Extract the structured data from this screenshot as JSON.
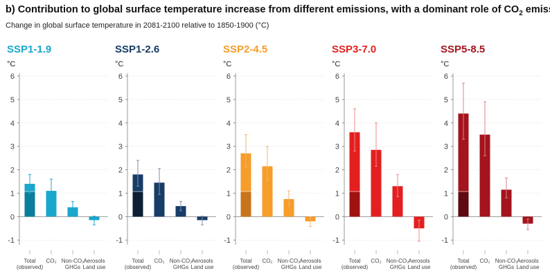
{
  "title_prefix": "b) Contribution to global surface temperature increase from different emissions, with a dominant role of CO",
  "title_sub": "2",
  "title_suffix": " emissions",
  "subtitle": "Change in global surface temperature in 2081-2100 relative to 1850-1900 (°C)",
  "chart_data": {
    "type": "bar",
    "unit_label": "°C",
    "ylim": [
      -1.2,
      6
    ],
    "yticks": [
      -1,
      0,
      1,
      2,
      3,
      4,
      5,
      6
    ],
    "categories": [
      [
        "Total",
        "(observed)"
      ],
      [
        "CO₂",
        ""
      ],
      [
        "Non-CO₂",
        "GHGs"
      ],
      [
        "Aerosols",
        "Land use"
      ]
    ],
    "observed_total": 1.07,
    "panels": [
      {
        "name": "SSP1-1.9",
        "color": "#1aa7cc",
        "dark": "#0b7e9c",
        "error": "#1aa7cc",
        "values": [
          1.4,
          1.1,
          0.4,
          -0.15
        ],
        "ranges": [
          [
            1.0,
            1.8
          ],
          [
            0.65,
            1.6
          ],
          [
            0.2,
            0.65
          ],
          [
            -0.35,
            0.02
          ]
        ]
      },
      {
        "name": "SSP1-2.6",
        "color": "#173c66",
        "dark": "#0c1f33",
        "error": "#7d8fa8",
        "values": [
          1.8,
          1.45,
          0.45,
          -0.15
        ],
        "ranges": [
          [
            1.3,
            2.4
          ],
          [
            0.95,
            2.05
          ],
          [
            0.25,
            0.65
          ],
          [
            -0.35,
            0.02
          ]
        ]
      },
      {
        "name": "SSP2-4.5",
        "color": "#f69d2a",
        "dark": "#c8741a",
        "error": "#f4b56b",
        "values": [
          2.7,
          2.15,
          0.75,
          -0.2
        ],
        "ranges": [
          [
            2.1,
            3.5
          ],
          [
            1.55,
            3.0
          ],
          [
            0.45,
            1.1
          ],
          [
            -0.42,
            0.0
          ]
        ]
      },
      {
        "name": "SSP3-7.0",
        "color": "#e41f1f",
        "dark": "#a01212",
        "error": "#f08a8a",
        "values": [
          3.6,
          2.85,
          1.3,
          -0.5
        ],
        "ranges": [
          [
            2.8,
            4.6
          ],
          [
            2.15,
            4.0
          ],
          [
            0.85,
            1.8
          ],
          [
            -1.05,
            -0.15
          ]
        ]
      },
      {
        "name": "SSP5-8.5",
        "color": "#a3141e",
        "dark": "#5e0a10",
        "error": "#d88388",
        "values": [
          4.4,
          3.5,
          1.15,
          -0.3
        ],
        "ranges": [
          [
            3.3,
            5.7
          ],
          [
            2.6,
            4.9
          ],
          [
            0.8,
            1.65
          ],
          [
            -0.55,
            -0.1
          ]
        ]
      }
    ]
  }
}
